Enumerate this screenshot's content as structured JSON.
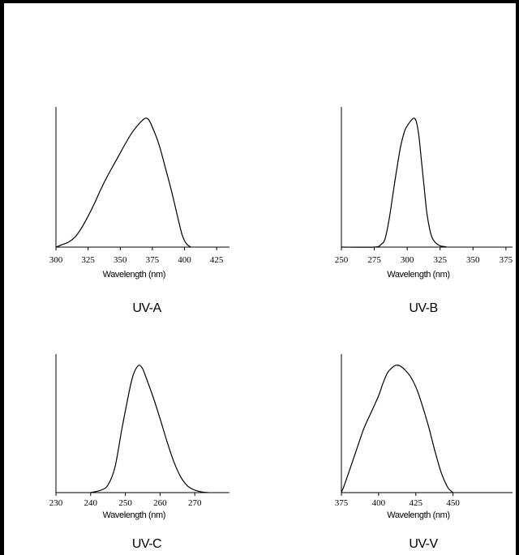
{
  "chart_data": [
    {
      "type": "line",
      "title": "UV-A",
      "xlabel": "Wavelength (nm)",
      "ylabel": "",
      "xlim": [
        300,
        435
      ],
      "ylim": [
        0,
        1
      ],
      "x_ticks": [
        "300",
        "325",
        "350",
        "375",
        "400",
        "425"
      ],
      "grid": false,
      "series": [
        {
          "x": [
            300,
            305,
            310,
            315,
            320,
            325,
            330,
            335,
            340,
            345,
            350,
            355,
            360,
            365,
            368,
            370,
            372,
            375,
            380,
            385,
            390,
            395,
            398,
            400,
            402,
            405
          ],
          "y": [
            0.0,
            0.02,
            0.04,
            0.08,
            0.15,
            0.24,
            0.34,
            0.45,
            0.55,
            0.64,
            0.73,
            0.82,
            0.9,
            0.96,
            0.99,
            1.0,
            0.99,
            0.93,
            0.8,
            0.62,
            0.43,
            0.22,
            0.1,
            0.05,
            0.02,
            0.0
          ]
        }
      ]
    },
    {
      "type": "line",
      "title": "UV-B",
      "xlabel": "Wavelength (nm)",
      "ylabel": "",
      "xlim": [
        250,
        380
      ],
      "ylim": [
        0,
        1
      ],
      "x_ticks": [
        "250",
        "275",
        "300",
        "325",
        "350",
        "375"
      ],
      "grid": false,
      "series": [
        {
          "x": [
            250,
            275,
            280,
            283,
            286,
            289,
            292,
            295,
            298,
            300,
            302,
            305,
            307,
            309,
            311,
            313,
            315,
            318,
            321,
            325,
            328,
            330
          ],
          "y": [
            0.0,
            0.0,
            0.02,
            0.06,
            0.2,
            0.4,
            0.6,
            0.78,
            0.9,
            0.94,
            0.97,
            1.0,
            0.97,
            0.85,
            0.65,
            0.45,
            0.26,
            0.1,
            0.04,
            0.01,
            0.005,
            0.0
          ]
        }
      ]
    },
    {
      "type": "line",
      "title": "UV-C",
      "xlabel": "Wavelength (nm)",
      "ylabel": "",
      "xlim": [
        230,
        280
      ],
      "ylim": [
        0,
        1
      ],
      "x_ticks": [
        "230",
        "240",
        "250",
        "260",
        "270"
      ],
      "grid": false,
      "series": [
        {
          "x": [
            240,
            243,
            245,
            247,
            249,
            251,
            252,
            253,
            254,
            255,
            256,
            258,
            260,
            262,
            264,
            266,
            268,
            270,
            272,
            274
          ],
          "y": [
            0.0,
            0.02,
            0.06,
            0.2,
            0.5,
            0.78,
            0.9,
            0.97,
            1.0,
            0.97,
            0.9,
            0.75,
            0.58,
            0.4,
            0.24,
            0.12,
            0.05,
            0.02,
            0.005,
            0.0
          ]
        }
      ]
    },
    {
      "type": "line",
      "title": "UV-V",
      "xlabel": "Wavelength (nm)",
      "ylabel": "",
      "xlim": [
        375,
        490
      ],
      "ylim": [
        0,
        1
      ],
      "x_ticks": [
        "375",
        "400",
        "425",
        "450"
      ],
      "grid": false,
      "series": [
        {
          "x": [
            375,
            377,
            380,
            385,
            390,
            395,
            400,
            403,
            406,
            409,
            412,
            415,
            418,
            422,
            426,
            430,
            434,
            438,
            442,
            446,
            448,
            450
          ],
          "y": [
            0.0,
            0.06,
            0.16,
            0.33,
            0.5,
            0.63,
            0.76,
            0.86,
            0.94,
            0.98,
            1.0,
            0.99,
            0.96,
            0.9,
            0.8,
            0.66,
            0.5,
            0.32,
            0.16,
            0.05,
            0.02,
            0.0
          ]
        }
      ]
    }
  ]
}
